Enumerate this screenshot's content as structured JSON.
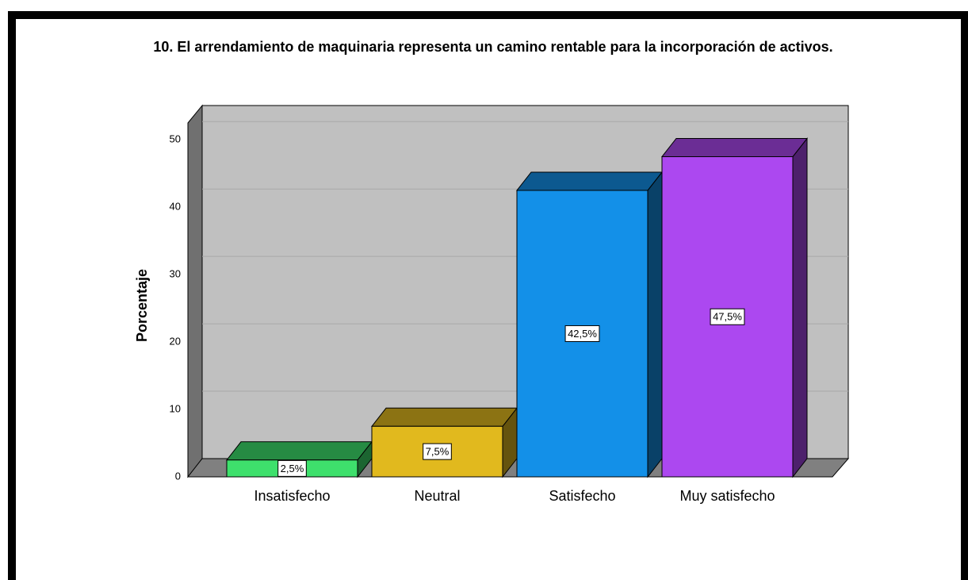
{
  "chart_data": {
    "type": "bar3d",
    "title": "10. El arrendamiento de maquinaria representa un camino rentable para la incorporación de activos.",
    "y_label": "Porcentaje",
    "categories": [
      "Insatisfecho",
      "Neutral",
      "Satisfecho",
      "Muy satisfecho"
    ],
    "values": [
      2.5,
      7.5,
      42.5,
      47.5
    ],
    "value_labels": [
      "2,5%",
      "7,5%",
      "42,5%",
      "47,5%"
    ],
    "colors": [
      "#3ee06c",
      "#e1b91e",
      "#1390e8",
      "#ac48f0"
    ],
    "ylim": [
      0,
      52.5
    ],
    "yticks": [
      0,
      10,
      20,
      30,
      40,
      50
    ],
    "grid": true
  }
}
